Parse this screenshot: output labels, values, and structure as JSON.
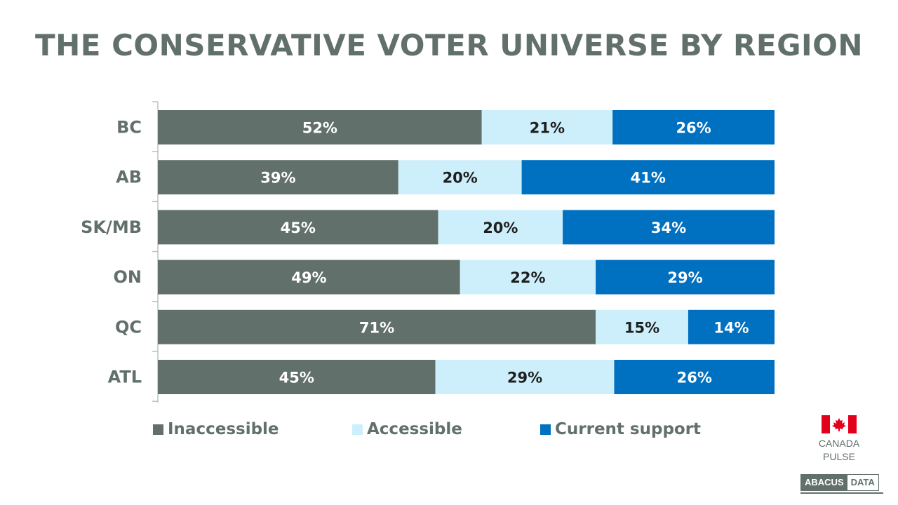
{
  "chart_data": {
    "type": "bar",
    "orientation": "horizontal",
    "stacked": true,
    "title": "THE CONSERVATIVE VOTER UNIVERSE BY REGION",
    "categories": [
      "BC",
      "AB",
      "SK/MB",
      "ON",
      "QC",
      "ATL"
    ],
    "series": [
      {
        "name": "Inaccessible",
        "values": [
          52,
          39,
          45,
          49,
          71,
          45
        ],
        "color": "#62706c",
        "label_color": "#ffffff"
      },
      {
        "name": "Accessible",
        "values": [
          21,
          20,
          20,
          22,
          15,
          29
        ],
        "color": "#cdeffb",
        "label_color": "#1f1f1f"
      },
      {
        "name": "Current support",
        "values": [
          26,
          41,
          34,
          29,
          14,
          26
        ],
        "color": "#0070c0",
        "label_color": "#ffffff"
      }
    ],
    "value_suffix": "%",
    "legend_position": "bottom",
    "grid": false
  },
  "branding": {
    "canada_line1": "CANADA",
    "canada_line2": "PULSE",
    "abacus_left": "ABACUS",
    "abacus_right": "DATA",
    "flag_color": "#e3001b"
  }
}
